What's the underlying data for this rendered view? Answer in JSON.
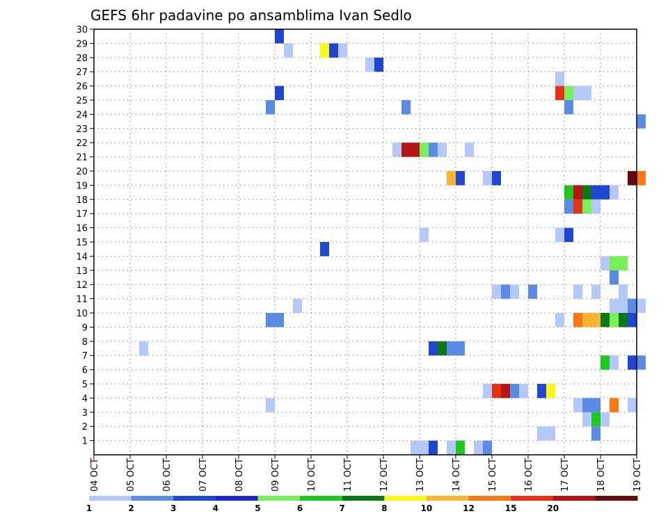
{
  "chart_data": {
    "type": "heatmap",
    "title": "GEFS 6hr padavine po ansamblima Ivan Sedlo",
    "xlabel": "",
    "ylabel": "",
    "x_tick_labels": [
      "04 OCT",
      "05 OCT",
      "06 OCT",
      "07 OCT",
      "08 OCT",
      "09 OCT",
      "10 OCT",
      "11 OCT",
      "12 OCT",
      "13 OCT",
      "14 OCT",
      "15 OCT",
      "16 OCT",
      "17 OCT",
      "18 OCT",
      "19 OCT"
    ],
    "y_tick_labels": [
      "1",
      "2",
      "3",
      "4",
      "5",
      "6",
      "7",
      "8",
      "9",
      "10",
      "11",
      "12",
      "13",
      "14",
      "15",
      "16",
      "17",
      "18",
      "19",
      "20",
      "21",
      "22",
      "23",
      "24",
      "25",
      "26",
      "27",
      "28",
      "29",
      "30"
    ],
    "xlim_days": [
      0,
      15
    ],
    "ylim": [
      0,
      30
    ],
    "grid": true,
    "colorbar": {
      "levels": [
        "1",
        "2",
        "3",
        "4",
        "5",
        "6",
        "7",
        "8",
        "10",
        "12",
        "15",
        "20"
      ],
      "colors": [
        "#b4c8fa",
        "#5a8ce6",
        "#1e46d2",
        "#1e28c8",
        "#78f05a",
        "#1ec81e",
        "#0a7814",
        "#fafa14",
        "#fab432",
        "#fa7814",
        "#e63214",
        "#b41414",
        "#640a0a"
      ]
    },
    "cells_note_days_from_04_oct": "each cell: [day_offset, member, color_index]",
    "cells": [
      [
        5.0,
        29,
        2
      ],
      [
        5.25,
        28,
        0
      ],
      [
        6.25,
        28,
        7
      ],
      [
        6.5,
        28,
        2
      ],
      [
        6.75,
        28,
        0
      ],
      [
        7.5,
        27,
        0
      ],
      [
        7.75,
        27,
        2
      ],
      [
        12.75,
        26,
        0
      ],
      [
        5.0,
        25,
        2
      ],
      [
        12.75,
        25,
        10
      ],
      [
        13.0,
        25,
        4
      ],
      [
        13.25,
        25,
        0
      ],
      [
        13.5,
        25,
        0
      ],
      [
        4.75,
        24,
        1
      ],
      [
        8.5,
        24,
        1
      ],
      [
        13.0,
        24,
        1
      ],
      [
        15.0,
        23,
        1
      ],
      [
        8.25,
        21,
        0
      ],
      [
        8.5,
        21,
        11
      ],
      [
        8.75,
        21,
        11
      ],
      [
        9.0,
        21,
        4
      ],
      [
        9.25,
        21,
        1
      ],
      [
        9.5,
        21,
        0
      ],
      [
        10.25,
        21,
        0
      ],
      [
        9.75,
        19,
        8
      ],
      [
        10.0,
        19,
        2
      ],
      [
        10.75,
        19,
        0
      ],
      [
        11.0,
        19,
        2
      ],
      [
        14.75,
        19,
        12
      ],
      [
        15.0,
        19,
        9
      ],
      [
        13.0,
        18,
        5
      ],
      [
        13.25,
        18,
        11
      ],
      [
        13.5,
        18,
        6
      ],
      [
        13.75,
        18,
        2
      ],
      [
        14.0,
        18,
        2
      ],
      [
        14.25,
        18,
        0
      ],
      [
        13.0,
        17,
        1
      ],
      [
        13.25,
        17,
        10
      ],
      [
        13.5,
        17,
        4
      ],
      [
        13.75,
        17,
        0
      ],
      [
        9.0,
        15,
        0
      ],
      [
        12.75,
        15,
        0
      ],
      [
        13.0,
        15,
        2
      ],
      [
        6.25,
        14,
        2
      ],
      [
        14.0,
        13,
        0
      ],
      [
        14.25,
        13,
        4
      ],
      [
        14.5,
        13,
        4
      ],
      [
        14.25,
        12,
        1
      ],
      [
        11.0,
        11,
        0
      ],
      [
        11.25,
        11,
        1
      ],
      [
        11.5,
        11,
        0
      ],
      [
        12.0,
        11,
        1
      ],
      [
        13.25,
        11,
        0
      ],
      [
        13.75,
        11,
        0
      ],
      [
        14.5,
        11,
        0
      ],
      [
        5.5,
        10,
        0
      ],
      [
        14.25,
        10,
        0
      ],
      [
        14.5,
        10,
        0
      ],
      [
        14.75,
        10,
        1
      ],
      [
        15.0,
        10,
        0
      ],
      [
        4.75,
        9,
        1
      ],
      [
        5.0,
        9,
        1
      ],
      [
        12.75,
        9,
        0
      ],
      [
        13.25,
        9,
        9
      ],
      [
        13.5,
        9,
        8
      ],
      [
        13.75,
        9,
        8
      ],
      [
        14.0,
        9,
        6
      ],
      [
        14.25,
        9,
        4
      ],
      [
        14.5,
        9,
        6
      ],
      [
        14.75,
        9,
        2
      ],
      [
        1.25,
        7,
        0
      ],
      [
        9.25,
        7,
        2
      ],
      [
        9.5,
        7,
        6
      ],
      [
        9.75,
        7,
        1
      ],
      [
        10.0,
        7,
        1
      ],
      [
        14.0,
        6,
        5
      ],
      [
        14.25,
        6,
        0
      ],
      [
        14.75,
        6,
        2
      ],
      [
        15.0,
        6,
        1
      ],
      [
        10.75,
        4,
        0
      ],
      [
        11.0,
        4,
        10
      ],
      [
        11.25,
        4,
        11
      ],
      [
        11.5,
        4,
        1
      ],
      [
        11.75,
        4,
        0
      ],
      [
        12.25,
        4,
        2
      ],
      [
        12.5,
        4,
        7
      ],
      [
        4.75,
        3,
        0
      ],
      [
        13.25,
        3,
        0
      ],
      [
        13.5,
        3,
        1
      ],
      [
        13.75,
        3,
        1
      ],
      [
        14.25,
        3,
        9
      ],
      [
        14.75,
        3,
        0
      ],
      [
        13.5,
        2,
        0
      ],
      [
        13.75,
        2,
        5
      ],
      [
        14.0,
        2,
        0
      ],
      [
        12.25,
        1,
        0
      ],
      [
        12.5,
        1,
        0
      ],
      [
        13.75,
        1,
        1
      ],
      [
        8.75,
        0,
        0
      ],
      [
        9.0,
        0,
        0
      ],
      [
        9.25,
        0,
        2
      ],
      [
        9.75,
        0,
        0
      ],
      [
        10.0,
        0,
        5
      ],
      [
        10.5,
        0,
        0
      ],
      [
        10.75,
        0,
        1
      ]
    ]
  }
}
